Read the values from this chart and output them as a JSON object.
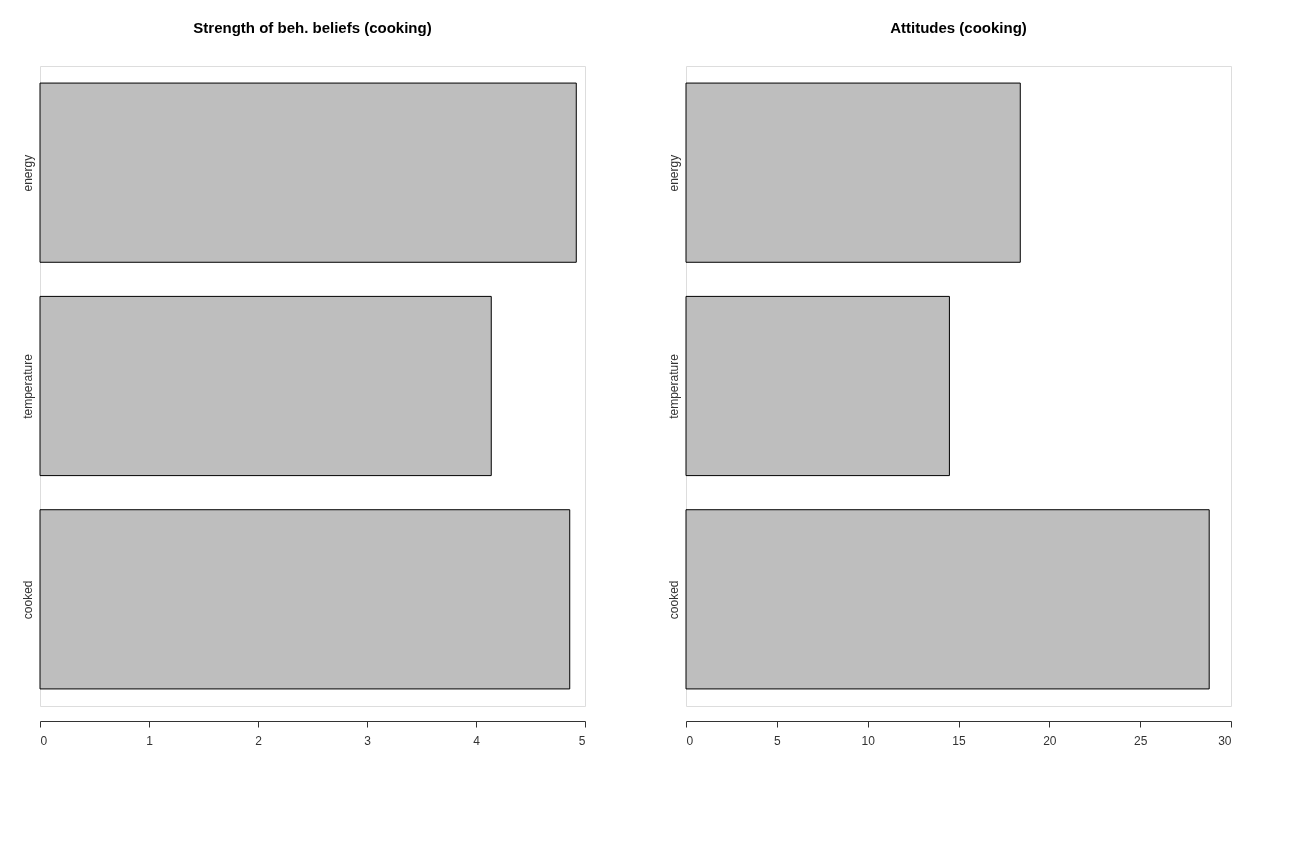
{
  "chart_data": [
    {
      "type": "bar",
      "orientation": "horizontal",
      "title": "Strength of beh. beliefs (cooking)",
      "categories": [
        "energy",
        "temperature",
        "cooked"
      ],
      "values": [
        4.92,
        4.14,
        4.86
      ],
      "color": "#bebebe",
      "xlim": [
        0,
        5
      ],
      "xticks": [
        0,
        1,
        2,
        3,
        4,
        5
      ],
      "grid": false
    },
    {
      "type": "bar",
      "orientation": "horizontal",
      "title": "Attitudes (cooking)",
      "categories": [
        "energy",
        "temperature",
        "cooked"
      ],
      "values": [
        18.4,
        14.5,
        28.8
      ],
      "color": "#bebebe",
      "xlim": [
        0,
        30
      ],
      "xticks": [
        0,
        5,
        10,
        15,
        20,
        25,
        30
      ],
      "grid": false
    }
  ]
}
